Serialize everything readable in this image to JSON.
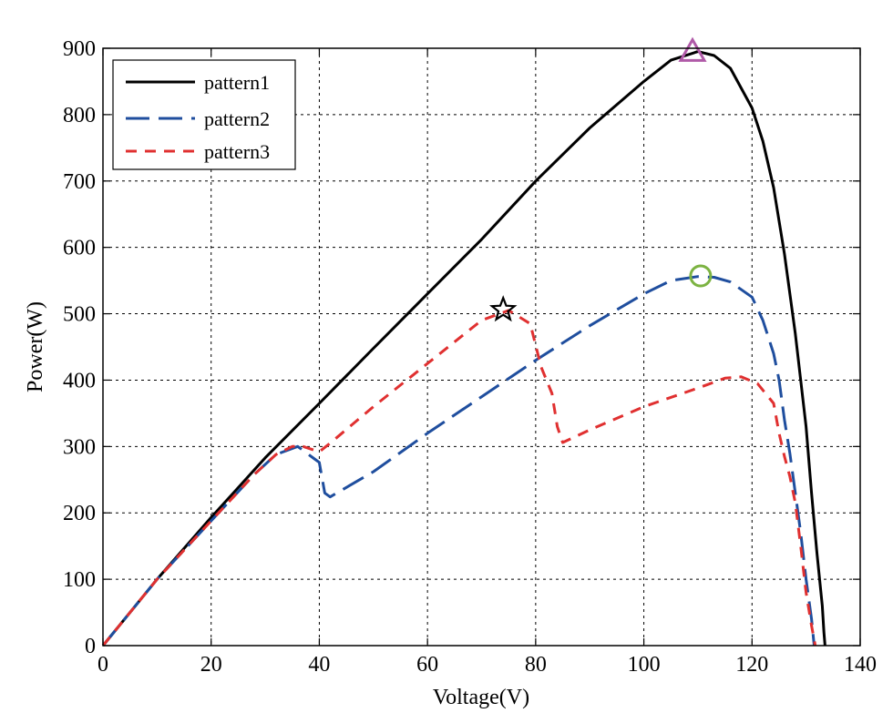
{
  "chart_data": {
    "type": "line",
    "title": "",
    "xlabel": "Voltage(V)",
    "ylabel": "Power(W)",
    "xlim": [
      0,
      140
    ],
    "ylim": [
      0,
      900
    ],
    "x_ticks": [
      0,
      20,
      40,
      60,
      80,
      100,
      120,
      140
    ],
    "y_ticks": [
      0,
      100,
      200,
      300,
      400,
      500,
      600,
      700,
      800,
      900
    ],
    "grid": true,
    "grid_style": "dotted",
    "legend_position": "top-left",
    "series": [
      {
        "name": "pattern1",
        "color": "#000000",
        "line_style": "solid",
        "points": [
          [
            0,
            0
          ],
          [
            10,
            100
          ],
          [
            20,
            193
          ],
          [
            30,
            283
          ],
          [
            40,
            365
          ],
          [
            50,
            448
          ],
          [
            60,
            530
          ],
          [
            70,
            612
          ],
          [
            80,
            700
          ],
          [
            90,
            780
          ],
          [
            100,
            850
          ],
          [
            105,
            882
          ],
          [
            110,
            895
          ],
          [
            113,
            889
          ],
          [
            116,
            870
          ],
          [
            120,
            810
          ],
          [
            122,
            760
          ],
          [
            124,
            690
          ],
          [
            126,
            590
          ],
          [
            128,
            470
          ],
          [
            130,
            330
          ],
          [
            131,
            230
          ],
          [
            132,
            140
          ],
          [
            133,
            60
          ],
          [
            133.3,
            20
          ],
          [
            133.5,
            0
          ]
        ]
      },
      {
        "name": "pattern2",
        "color": "#1f4e9e",
        "line_style": "dash",
        "points": [
          [
            0,
            0
          ],
          [
            10,
            100
          ],
          [
            20,
            188
          ],
          [
            28,
            258
          ],
          [
            32,
            288
          ],
          [
            36,
            300
          ],
          [
            38,
            288
          ],
          [
            39,
            282
          ],
          [
            40,
            276
          ],
          [
            41,
            230
          ],
          [
            42,
            224
          ],
          [
            50,
            262
          ],
          [
            60,
            320
          ],
          [
            70,
            375
          ],
          [
            80,
            430
          ],
          [
            90,
            482
          ],
          [
            100,
            530
          ],
          [
            105,
            550
          ],
          [
            110,
            556
          ],
          [
            113,
            555
          ],
          [
            116,
            548
          ],
          [
            120,
            525
          ],
          [
            122,
            490
          ],
          [
            124,
            440
          ],
          [
            125,
            400
          ],
          [
            126,
            340
          ],
          [
            127,
            290
          ],
          [
            128,
            230
          ],
          [
            129,
            170
          ],
          [
            130,
            100
          ],
          [
            131,
            40
          ],
          [
            131.5,
            0
          ]
        ]
      },
      {
        "name": "pattern3",
        "color": "#e03030",
        "line_style": "dash",
        "points": [
          [
            0,
            0
          ],
          [
            10,
            100
          ],
          [
            20,
            188
          ],
          [
            28,
            258
          ],
          [
            32,
            288
          ],
          [
            35,
            300
          ],
          [
            37,
            300
          ],
          [
            40,
            292
          ],
          [
            42,
            305
          ],
          [
            50,
            360
          ],
          [
            60,
            425
          ],
          [
            70,
            490
          ],
          [
            75,
            505
          ],
          [
            79,
            485
          ],
          [
            81,
            420
          ],
          [
            83,
            380
          ],
          [
            84,
            330
          ],
          [
            85,
            306
          ],
          [
            90,
            325
          ],
          [
            100,
            360
          ],
          [
            110,
            388
          ],
          [
            115,
            403
          ],
          [
            118,
            405
          ],
          [
            121,
            395
          ],
          [
            124,
            365
          ],
          [
            125,
            320
          ],
          [
            126,
            285
          ],
          [
            127,
            255
          ],
          [
            128,
            215
          ],
          [
            129,
            150
          ],
          [
            130,
            80
          ],
          [
            131,
            30
          ],
          [
            131.7,
            0
          ]
        ]
      }
    ],
    "markers": [
      {
        "name": "mpp-pattern1",
        "shape": "triangle",
        "color": "#b05aa8",
        "x": 109,
        "y": 895
      },
      {
        "name": "mpp-pattern2",
        "shape": "circle",
        "color": "#7cb342",
        "x": 110.5,
        "y": 557
      },
      {
        "name": "mpp-pattern3",
        "shape": "star",
        "color": "#000000",
        "x": 74,
        "y": 506
      }
    ]
  }
}
